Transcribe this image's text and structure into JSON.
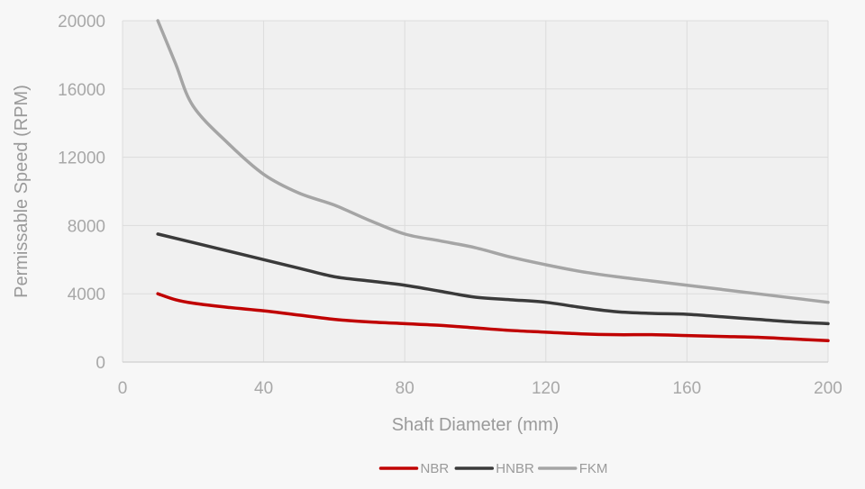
{
  "chart_data": {
    "type": "line",
    "title": "",
    "xlabel": "Shaft Diameter (mm)",
    "ylabel": "Permissable Speed (RPM)",
    "xlim": [
      0,
      200
    ],
    "ylim": [
      0,
      20000
    ],
    "xticks": [
      0,
      40,
      80,
      120,
      160,
      200
    ],
    "yticks": [
      0,
      4000,
      8000,
      12000,
      16000,
      20000
    ],
    "xtick_labels": [
      "0",
      "40",
      "80",
      "120",
      "160",
      "200"
    ],
    "ytick_labels": [
      "0",
      "4000",
      "8000",
      "12000",
      "16000",
      "20000"
    ],
    "grid": true,
    "legend_position": "bottom-center",
    "series": [
      {
        "name": "NBR",
        "color": "#c00000",
        "x": [
          10,
          15,
          20,
          30,
          40,
          50,
          60,
          70,
          80,
          90,
          100,
          110,
          120,
          130,
          140,
          150,
          160,
          170,
          180,
          190,
          200
        ],
        "values": [
          4000,
          3650,
          3450,
          3200,
          3000,
          2750,
          2500,
          2350,
          2250,
          2150,
          2000,
          1850,
          1750,
          1650,
          1600,
          1600,
          1550,
          1500,
          1450,
          1350,
          1250
        ]
      },
      {
        "name": "HNBR",
        "color": "#3a3a3a",
        "x": [
          10,
          20,
          30,
          40,
          50,
          60,
          70,
          80,
          90,
          100,
          110,
          120,
          130,
          140,
          150,
          160,
          170,
          180,
          190,
          200
        ],
        "values": [
          7500,
          7000,
          6500,
          6000,
          5500,
          5000,
          4750,
          4500,
          4150,
          3800,
          3650,
          3500,
          3200,
          2950,
          2850,
          2800,
          2650,
          2500,
          2350,
          2250
        ]
      },
      {
        "name": "FKM",
        "color": "#a5a5a5",
        "x": [
          10,
          15,
          20,
          30,
          40,
          50,
          60,
          70,
          80,
          90,
          100,
          110,
          120,
          130,
          140,
          150,
          160,
          170,
          180,
          190,
          200
        ],
        "values": [
          20000,
          17500,
          15000,
          12800,
          11000,
          9900,
          9200,
          8300,
          7500,
          7100,
          6700,
          6150,
          5700,
          5300,
          5000,
          4750,
          4500,
          4250,
          4000,
          3750,
          3500
        ]
      }
    ]
  }
}
